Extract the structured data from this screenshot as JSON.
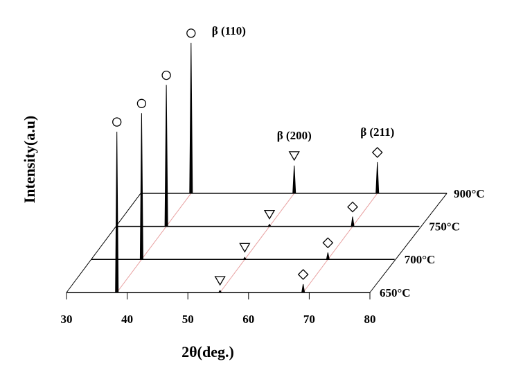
{
  "chart_data": {
    "type": "waterfall",
    "x_label": "2θ(deg.)",
    "y_label": "Intensity(a.u)",
    "xlim": [
      30,
      80
    ],
    "xticks": [
      30,
      40,
      50,
      60,
      70,
      80
    ],
    "ylim": [
      0,
      250
    ],
    "peak_labels": [
      "β (110)",
      "β (200)",
      "β (211)"
    ],
    "series": [
      {
        "name": "650°C",
        "color": "#000000",
        "x": [
          38.3,
          55.3,
          69.0
        ],
        "values": [
          232,
          3,
          12
        ]
      },
      {
        "name": "700°C",
        "color": "#000000",
        "x": [
          38.3,
          55.3,
          69.0
        ],
        "values": [
          211,
          3,
          10
        ]
      },
      {
        "name": "750°C",
        "color": "#000000",
        "x": [
          38.3,
          55.3,
          69.0
        ],
        "values": [
          204,
          3,
          14
        ]
      },
      {
        "name": "900°C",
        "color": "#000000",
        "x": [
          38.3,
          55.3,
          69.0
        ],
        "values": [
          217,
          40,
          45
        ]
      }
    ]
  }
}
